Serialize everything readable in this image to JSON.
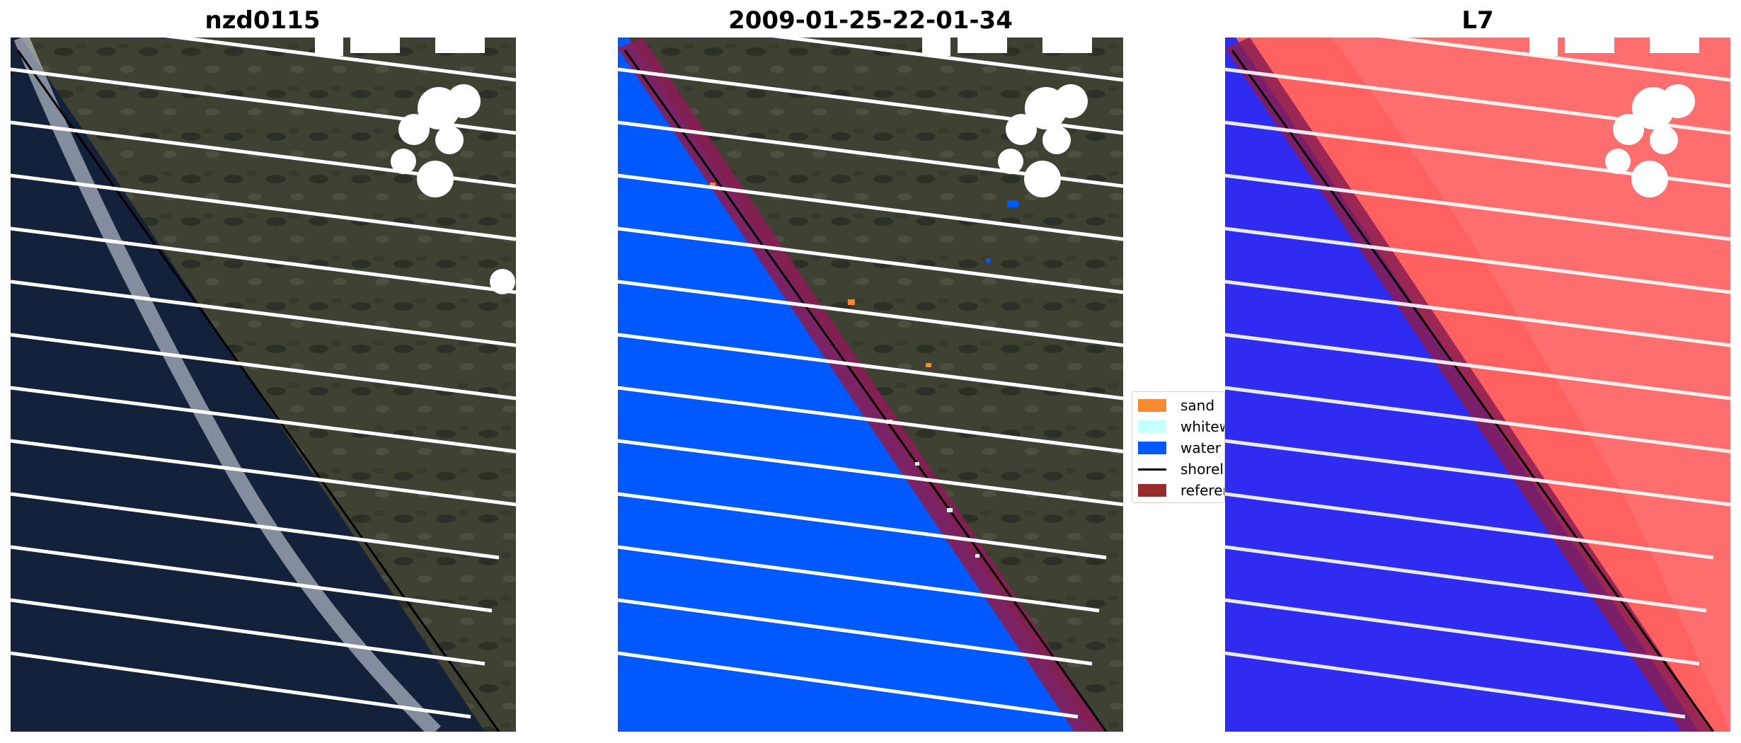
{
  "panels": [
    {
      "title": "nzd0115",
      "type": "rgb"
    },
    {
      "title": "2009-01-25-22-01-34",
      "type": "classified"
    },
    {
      "title": "L7",
      "type": "index"
    }
  ],
  "legend": {
    "items": [
      {
        "label": "sand",
        "color": "#f68a33",
        "kind": "patch"
      },
      {
        "label": "whitewater",
        "color": "#c6ffff",
        "kind": "patch"
      },
      {
        "label": "water",
        "color": "#0059ff",
        "kind": "patch"
      },
      {
        "label": "shoreline",
        "color": "#000000",
        "kind": "line"
      },
      {
        "label": "reference",
        "color": "#9a2b2b",
        "kind": "patch"
      }
    ]
  },
  "colors": {
    "land": "#3e3f33",
    "ocean": "#15223b",
    "surf": "#dfe8ee",
    "classified_water": "#0059ff",
    "reference_band": "#8a1d54",
    "index_land": "#ff6060",
    "index_water": "#2f2bf0",
    "scanline_gap": "#ffffff",
    "cloud_mask": "#ffffff"
  }
}
